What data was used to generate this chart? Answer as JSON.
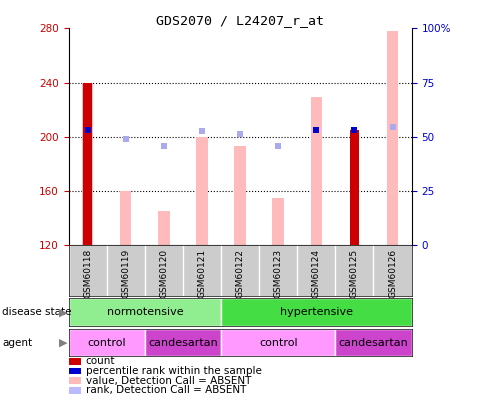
{
  "title": "GDS2070 / L24207_r_at",
  "samples": [
    "GSM60118",
    "GSM60119",
    "GSM60120",
    "GSM60121",
    "GSM60122",
    "GSM60123",
    "GSM60124",
    "GSM60125",
    "GSM60126"
  ],
  "ylim_left": [
    120,
    280
  ],
  "ylim_right": [
    0,
    100
  ],
  "yticks_left": [
    120,
    160,
    200,
    240,
    280
  ],
  "yticks_right": [
    0,
    25,
    50,
    75,
    100
  ],
  "ytick_labels_right": [
    "0",
    "25",
    "50",
    "75",
    "100%"
  ],
  "value_bars": [
    240.0,
    160.0,
    145.0,
    200.0,
    193.0,
    155.0,
    229.0,
    null,
    278.0
  ],
  "rank_markers": [
    null,
    198.0,
    193.0,
    204.0,
    202.0,
    193.0,
    null,
    null,
    207.0
  ],
  "count_bars": [
    240.0,
    null,
    null,
    null,
    null,
    null,
    null,
    205.0,
    null
  ],
  "percentile_markers": [
    205.0,
    null,
    null,
    null,
    null,
    null,
    205.0,
    205.0,
    null
  ],
  "disease_state": [
    {
      "label": "normotensive",
      "span": [
        0,
        4
      ],
      "color": "#90ee90"
    },
    {
      "label": "hypertensive",
      "span": [
        4,
        9
      ],
      "color": "#44dd44"
    }
  ],
  "agent": [
    {
      "label": "control",
      "span": [
        0,
        2
      ],
      "color": "#ff99ff"
    },
    {
      "label": "candesartan",
      "span": [
        2,
        4
      ],
      "color": "#cc44cc"
    },
    {
      "label": "control",
      "span": [
        4,
        7
      ],
      "color": "#ff99ff"
    },
    {
      "label": "candesartan",
      "span": [
        7,
        9
      ],
      "color": "#cc44cc"
    }
  ],
  "legend_items": [
    {
      "color": "#cc0000",
      "label": "count"
    },
    {
      "color": "#0000cc",
      "label": "percentile rank within the sample"
    },
    {
      "color": "#ffbbbb",
      "label": "value, Detection Call = ABSENT"
    },
    {
      "color": "#bbbbff",
      "label": "rank, Detection Call = ABSENT"
    }
  ],
  "left_tick_color": "#cc0000",
  "right_tick_color": "#0000cc",
  "grid_yticks": [
    160,
    200,
    240
  ]
}
